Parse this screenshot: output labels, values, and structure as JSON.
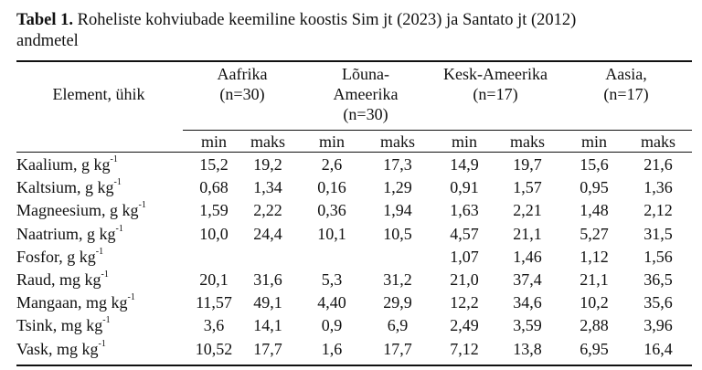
{
  "caption": {
    "label": "Tabel 1.",
    "text_line1": " Roheliste kohviubade keemiline koostis Sim jt (2023) ja Santato jt (2012)",
    "text_line2": "andmetel"
  },
  "table": {
    "row_header": "Element, ühik",
    "groups": [
      {
        "line1": "Aafrika",
        "line2": "(n=30)",
        "line3": ""
      },
      {
        "line1": "Lõuna-",
        "line2": "Ameerika",
        "line3": "(n=30)"
      },
      {
        "line1": "Kesk-Ameerika",
        "line2": "(n=17)",
        "line3": ""
      },
      {
        "line1": "Aasia,",
        "line2": "(n=17)",
        "line3": ""
      }
    ],
    "sub_min": "min",
    "sub_max": "maks",
    "rows": [
      {
        "name": "Kaalium, g kg",
        "exp": "-1",
        "v": [
          "15,2",
          "19,2",
          "2,6",
          "17,3",
          "14,9",
          "19,7",
          "15,6",
          "21,6"
        ]
      },
      {
        "name": "Kaltsium, g kg",
        "exp": "-1",
        "v": [
          "0,68",
          "1,34",
          "0,16",
          "1,29",
          "0,91",
          "1,57",
          "0,95",
          "1,36"
        ]
      },
      {
        "name": "Magneesium, g kg",
        "exp": "-1",
        "v": [
          "1,59",
          "2,22",
          "0,36",
          "1,94",
          "1,63",
          "2,21",
          "1,48",
          "2,12"
        ]
      },
      {
        "name": "Naatrium, g kg",
        "exp": "-1",
        "v": [
          "10,0",
          "24,4",
          "10,1",
          "10,5",
          "4,57",
          "21,1",
          "5,27",
          "31,5"
        ]
      },
      {
        "name": "Fosfor, g kg",
        "exp": "-1",
        "v": [
          "",
          "",
          "",
          "",
          "1,07",
          "1,46",
          "1,12",
          "1,56"
        ]
      },
      {
        "name": "Raud, mg kg",
        "exp": "-1",
        "v": [
          "20,1",
          "31,6",
          "5,3",
          "31,2",
          "21,0",
          "37,4",
          "21,1",
          "36,5"
        ]
      },
      {
        "name": "Mangaan, mg kg",
        "exp": "-1",
        "v": [
          "11,57",
          "49,1",
          "4,40",
          "29,9",
          "12,2",
          "34,6",
          "10,2",
          "35,6"
        ]
      },
      {
        "name": "Tsink, mg kg",
        "exp": "-1",
        "v": [
          "3,6",
          "14,1",
          "0,9",
          "6,9",
          "2,49",
          "3,59",
          "2,88",
          "3,96"
        ]
      },
      {
        "name": "Vask, mg kg",
        "exp": "-1",
        "v": [
          "10,52",
          "17,7",
          "1,6",
          "17,7",
          "7,12",
          "13,8",
          "6,95",
          "16,4"
        ]
      }
    ]
  }
}
